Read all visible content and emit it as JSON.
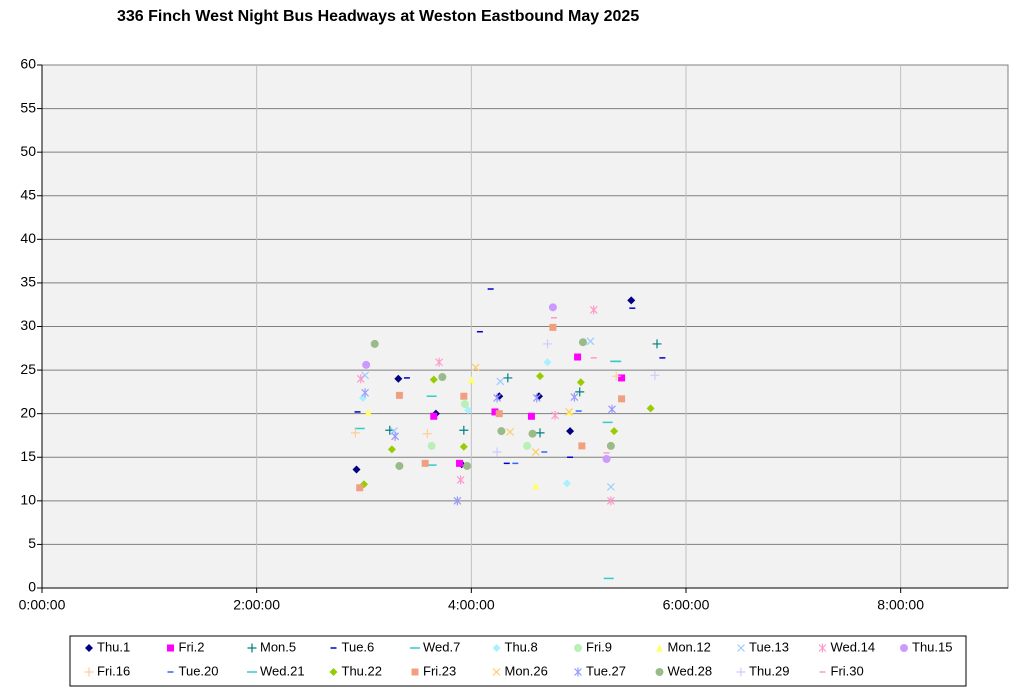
{
  "chart_data": {
    "type": "scatter",
    "title": "336 Finch West Night Bus Headways at Weston Eastbound May 2025",
    "xlim": [
      0,
      9
    ],
    "ylim": [
      0,
      60
    ],
    "xticks": [
      {
        "value": 0,
        "label": "0:00:00"
      },
      {
        "value": 2,
        "label": "2:00:00"
      },
      {
        "value": 4,
        "label": "4:00:00"
      },
      {
        "value": 6,
        "label": "6:00:00"
      },
      {
        "value": 8,
        "label": "8:00:00"
      }
    ],
    "yticks": [
      0,
      5,
      10,
      15,
      20,
      25,
      30,
      35,
      40,
      45,
      50,
      55,
      60
    ],
    "grid": true,
    "series": [
      {
        "name": "Thu.1",
        "color": "#000080",
        "marker": "diamond",
        "x": [
          2.93,
          3.32,
          3.67,
          3.91,
          4.26,
          4.63,
          4.92,
          5.49
        ],
        "values": [
          13.6,
          24,
          20,
          14.2,
          22,
          22,
          18,
          33
        ]
      },
      {
        "name": "Fri.2",
        "color": "#ff00ff",
        "marker": "square",
        "x": [
          3.65,
          3.89,
          4.22,
          4.56,
          4.99,
          5.4
        ],
        "values": [
          19.7,
          14.3,
          20.2,
          19.7,
          26.5,
          24.1
        ]
      },
      {
        "name": "Mon.5",
        "color": "#008080",
        "marker": "plus",
        "x": [
          3.24,
          3.93,
          4.34,
          4.64,
          5.01,
          5.73
        ],
        "values": [
          18.1,
          18.1,
          24.1,
          17.8,
          22.5,
          28
        ]
      },
      {
        "name": "Tue.6",
        "color": "#0000cc",
        "marker": "dash",
        "x": [
          2.94,
          3.4,
          4.18,
          4.08,
          4.33,
          4.92,
          5.5,
          5.78
        ],
        "values": [
          20.2,
          24.1,
          34.3,
          29.4,
          14.3,
          15,
          32.1,
          26.4
        ]
      },
      {
        "name": "Wed.7",
        "color": "#33cccc",
        "marker": "longdash",
        "x": [
          5.28,
          3.63,
          5.27,
          5.35,
          2.96
        ],
        "values": [
          1.1,
          14.1,
          19,
          26,
          18.3
        ]
      },
      {
        "name": "Thu.8",
        "color": "#a8f0ff",
        "marker": "diamond",
        "x": [
          2.99,
          3.97,
          4.89,
          4.71
        ],
        "values": [
          21.8,
          20.4,
          12,
          25.9
        ]
      },
      {
        "name": "Fri.9",
        "color": "#b8f0b8",
        "marker": "circle",
        "x": [
          3.63,
          4.52,
          3.94
        ],
        "values": [
          16.3,
          16.3,
          21.1
        ]
      },
      {
        "name": "Mon.12",
        "color": "#ffff66",
        "marker": "triangle",
        "x": [
          3.04,
          4.0,
          4.6,
          4.92
        ],
        "values": [
          20.2,
          23.9,
          11.7,
          20.2
        ]
      },
      {
        "name": "Tue.13",
        "color": "#99ccff",
        "marker": "x",
        "x": [
          3.01,
          4.27,
          5.3,
          5.11,
          3.28
        ],
        "values": [
          24.4,
          23.7,
          11.6,
          28.3,
          18
        ]
      },
      {
        "name": "Wed.14",
        "color": "#ff99cc",
        "marker": "star",
        "x": [
          2.97,
          3.7,
          3.9,
          5.14,
          5.3,
          4.78
        ],
        "values": [
          24,
          25.9,
          12.4,
          31.9,
          10,
          19.8
        ]
      },
      {
        "name": "Thu.15",
        "color": "#cc99ff",
        "marker": "circle",
        "x": [
          3.02,
          4.76,
          5.26
        ],
        "values": [
          25.6,
          32.2,
          14.8
        ]
      },
      {
        "name": "Fri.16",
        "color": "#ffcc99",
        "marker": "plus",
        "x": [
          2.92,
          3.59,
          5.35
        ],
        "values": [
          17.8,
          17.7,
          24.3
        ]
      },
      {
        "name": "Tue.20",
        "color": "#3366ff",
        "marker": "dash",
        "x": [
          4.41,
          4.68,
          5.0
        ],
        "values": [
          14.3,
          15.6,
          20.3
        ]
      },
      {
        "name": "Wed.21",
        "color": "#33cccc",
        "marker": "longdash",
        "x": [
          3.63,
          5.34
        ],
        "values": [
          22,
          26
        ]
      },
      {
        "name": "Thu.22",
        "color": "#99cc00",
        "marker": "diamond",
        "x": [
          3.0,
          3.26,
          3.65,
          3.93,
          4.64,
          5.02,
          5.33,
          5.67
        ],
        "values": [
          11.9,
          15.9,
          23.9,
          16.2,
          24.3,
          23.6,
          18,
          20.6
        ]
      },
      {
        "name": "Fri.23",
        "color": "#f0a080",
        "marker": "square",
        "x": [
          2.96,
          3.33,
          3.57,
          3.93,
          4.26,
          4.76,
          5.03,
          5.4
        ],
        "values": [
          11.5,
          22.1,
          14.3,
          22,
          20,
          29.9,
          16.3,
          21.7
        ]
      },
      {
        "name": "Mon.26",
        "color": "#ffcc66",
        "marker": "x",
        "x": [
          4.04,
          4.36,
          4.6,
          4.91
        ],
        "values": [
          25.3,
          17.9,
          15.6,
          20.2
        ]
      },
      {
        "name": "Tue.27",
        "color": "#9999ff",
        "marker": "star",
        "x": [
          3.01,
          3.29,
          3.87,
          4.24,
          4.61,
          4.96,
          5.31
        ],
        "values": [
          22.4,
          17.4,
          10,
          21.8,
          21.8,
          21.9,
          20.5
        ]
      },
      {
        "name": "Wed.28",
        "color": "#99bb88",
        "marker": "circle",
        "x": [
          3.1,
          3.33,
          3.73,
          3.96,
          4.28,
          4.57,
          5.04,
          5.3
        ],
        "values": [
          28,
          14,
          24.2,
          14,
          18,
          17.7,
          28.2,
          16.3
        ]
      },
      {
        "name": "Thu.29",
        "color": "#ccccff",
        "marker": "plus",
        "x": [
          4.71,
          4.24,
          5.71
        ],
        "values": [
          28,
          15.6,
          24.4
        ]
      },
      {
        "name": "Fri.30",
        "color": "#ff99cc",
        "marker": "dash",
        "x": [
          5.14,
          4.77,
          5.26
        ],
        "values": [
          26.4,
          31,
          15.5
        ]
      }
    ]
  }
}
